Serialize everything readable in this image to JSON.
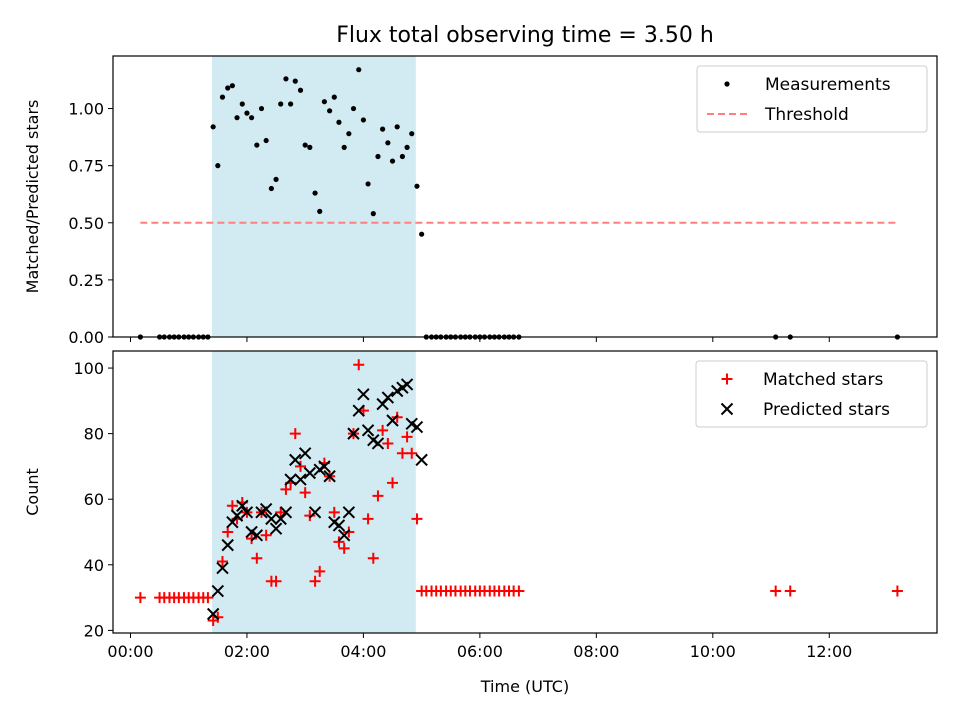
{
  "figure": {
    "title": "Flux total observing time = 3.50 h"
  },
  "chart_data": [
    {
      "type": "scatter",
      "ylabel": "Matched/Predicted stars",
      "xlabel": "",
      "xlim": [
        -0.3,
        13.85
      ],
      "ylim": [
        0,
        1.23
      ],
      "yticks": [
        0,
        0.25,
        0.5,
        0.75,
        1.0
      ],
      "ytick_labels": [
        "0.00",
        "0.25",
        "0.50",
        "0.75",
        "1.00"
      ],
      "x_unit": "hours UTC",
      "shaded_span": [
        1.4,
        4.9
      ],
      "shaded_color": "#add8e6",
      "legend": {
        "location": "upper right"
      },
      "series": [
        {
          "name": "Measurements",
          "marker": "dot",
          "color": "#000000",
          "points": [
            [
              0.17,
              0
            ],
            [
              0.5,
              0
            ],
            [
              0.58,
              0
            ],
            [
              0.67,
              0
            ],
            [
              0.75,
              0
            ],
            [
              0.83,
              0
            ],
            [
              0.92,
              0
            ],
            [
              1.0,
              0
            ],
            [
              1.08,
              0
            ],
            [
              1.17,
              0
            ],
            [
              1.25,
              0
            ],
            [
              1.33,
              0
            ],
            [
              1.42,
              0.92
            ],
            [
              1.5,
              0.75
            ],
            [
              1.58,
              1.05
            ],
            [
              1.67,
              1.09
            ],
            [
              1.75,
              1.1
            ],
            [
              1.83,
              0.96
            ],
            [
              1.92,
              1.02
            ],
            [
              2.0,
              0.98
            ],
            [
              2.08,
              0.96
            ],
            [
              2.17,
              0.84
            ],
            [
              2.25,
              1.0
            ],
            [
              2.33,
              0.86
            ],
            [
              2.42,
              0.65
            ],
            [
              2.5,
              0.69
            ],
            [
              2.58,
              1.02
            ],
            [
              2.67,
              1.13
            ],
            [
              2.75,
              1.02
            ],
            [
              2.83,
              1.12
            ],
            [
              2.92,
              1.08
            ],
            [
              3.0,
              0.84
            ],
            [
              3.08,
              0.83
            ],
            [
              3.17,
              0.63
            ],
            [
              3.25,
              0.55
            ],
            [
              3.33,
              1.03
            ],
            [
              3.42,
              0.99
            ],
            [
              3.5,
              1.05
            ],
            [
              3.58,
              0.94
            ],
            [
              3.67,
              0.83
            ],
            [
              3.75,
              0.89
            ],
            [
              3.83,
              1.0
            ],
            [
              3.92,
              1.17
            ],
            [
              4.0,
              0.95
            ],
            [
              4.08,
              0.67
            ],
            [
              4.17,
              0.54
            ],
            [
              4.25,
              0.79
            ],
            [
              4.33,
              0.91
            ],
            [
              4.42,
              0.85
            ],
            [
              4.5,
              0.77
            ],
            [
              4.58,
              0.92
            ],
            [
              4.67,
              0.79
            ],
            [
              4.75,
              0.83
            ],
            [
              4.83,
              0.89
            ],
            [
              4.92,
              0.66
            ],
            [
              5.0,
              0.45
            ],
            [
              5.08,
              0
            ],
            [
              5.17,
              0
            ],
            [
              5.25,
              0
            ],
            [
              5.33,
              0
            ],
            [
              5.42,
              0
            ],
            [
              5.5,
              0
            ],
            [
              5.58,
              0
            ],
            [
              5.67,
              0
            ],
            [
              5.75,
              0
            ],
            [
              5.83,
              0
            ],
            [
              5.92,
              0
            ],
            [
              6.0,
              0
            ],
            [
              6.08,
              0
            ],
            [
              6.17,
              0
            ],
            [
              6.25,
              0
            ],
            [
              6.33,
              0
            ],
            [
              6.42,
              0
            ],
            [
              6.5,
              0
            ],
            [
              6.58,
              0
            ],
            [
              6.67,
              0
            ],
            [
              11.08,
              0
            ],
            [
              11.33,
              0
            ],
            [
              13.17,
              0
            ]
          ]
        },
        {
          "name": "Threshold",
          "style": "dashed",
          "color": "#ff7f7f",
          "points": [
            [
              0.17,
              0.5
            ],
            [
              13.17,
              0.5
            ]
          ]
        }
      ]
    },
    {
      "type": "scatter",
      "ylabel": "Count",
      "xlabel": "Time (UTC)",
      "xlim": [
        -0.3,
        13.85
      ],
      "ylim": [
        19.2,
        105.2
      ],
      "yticks": [
        20,
        40,
        60,
        80,
        100
      ],
      "ytick_labels": [
        "20",
        "40",
        "60",
        "80",
        "100"
      ],
      "xticks": [
        0,
        2,
        4,
        6,
        8,
        10,
        12
      ],
      "xtick_labels": [
        "00:00",
        "02:00",
        "04:00",
        "06:00",
        "08:00",
        "10:00",
        "12:00"
      ],
      "shaded_span": [
        1.4,
        4.9
      ],
      "shaded_color": "#add8e6",
      "legend": {
        "location": "upper right"
      },
      "series": [
        {
          "name": "Matched stars",
          "marker": "plus",
          "color": "#ff0000",
          "points": [
            [
              0.17,
              30
            ],
            [
              0.5,
              30
            ],
            [
              0.58,
              30
            ],
            [
              0.67,
              30
            ],
            [
              0.75,
              30
            ],
            [
              0.83,
              30
            ],
            [
              0.92,
              30
            ],
            [
              1.0,
              30
            ],
            [
              1.08,
              30
            ],
            [
              1.17,
              30
            ],
            [
              1.25,
              30
            ],
            [
              1.33,
              30
            ],
            [
              1.42,
              23
            ],
            [
              1.5,
              24
            ],
            [
              1.58,
              41
            ],
            [
              1.67,
              50
            ],
            [
              1.75,
              58
            ],
            [
              1.83,
              54
            ],
            [
              1.92,
              59
            ],
            [
              2.0,
              56
            ],
            [
              2.08,
              48
            ],
            [
              2.17,
              42
            ],
            [
              2.25,
              56
            ],
            [
              2.33,
              49
            ],
            [
              2.42,
              35
            ],
            [
              2.5,
              35
            ],
            [
              2.58,
              56
            ],
            [
              2.67,
              63
            ],
            [
              2.75,
              65
            ],
            [
              2.83,
              80
            ],
            [
              2.92,
              70
            ],
            [
              3.0,
              62
            ],
            [
              3.08,
              55
            ],
            [
              3.17,
              35
            ],
            [
              3.25,
              38
            ],
            [
              3.33,
              71
            ],
            [
              3.42,
              67
            ],
            [
              3.5,
              56
            ],
            [
              3.58,
              47
            ],
            [
              3.67,
              45
            ],
            [
              3.75,
              50
            ],
            [
              3.83,
              80
            ],
            [
              3.92,
              101
            ],
            [
              4.0,
              87
            ],
            [
              4.08,
              54
            ],
            [
              4.17,
              42
            ],
            [
              4.25,
              61
            ],
            [
              4.33,
              81
            ],
            [
              4.42,
              77
            ],
            [
              4.5,
              65
            ],
            [
              4.58,
              85
            ],
            [
              4.67,
              74
            ],
            [
              4.75,
              79
            ],
            [
              4.83,
              74
            ],
            [
              4.92,
              54
            ],
            [
              5.0,
              32
            ],
            [
              5.08,
              32
            ],
            [
              5.17,
              32
            ],
            [
              5.25,
              32
            ],
            [
              5.33,
              32
            ],
            [
              5.42,
              32
            ],
            [
              5.5,
              32
            ],
            [
              5.58,
              32
            ],
            [
              5.67,
              32
            ],
            [
              5.75,
              32
            ],
            [
              5.83,
              32
            ],
            [
              5.92,
              32
            ],
            [
              6.0,
              32
            ],
            [
              6.08,
              32
            ],
            [
              6.17,
              32
            ],
            [
              6.25,
              32
            ],
            [
              6.33,
              32
            ],
            [
              6.42,
              32
            ],
            [
              6.5,
              32
            ],
            [
              6.58,
              32
            ],
            [
              6.67,
              32
            ],
            [
              11.08,
              32
            ],
            [
              11.33,
              32
            ],
            [
              13.17,
              32
            ]
          ]
        },
        {
          "name": "Predicted stars",
          "marker": "x",
          "color": "#000000",
          "points": [
            [
              1.42,
              25
            ],
            [
              1.5,
              32
            ],
            [
              1.58,
              39
            ],
            [
              1.67,
              46
            ],
            [
              1.75,
              53
            ],
            [
              1.83,
              55
            ],
            [
              1.92,
              58
            ],
            [
              2.0,
              56
            ],
            [
              2.08,
              50
            ],
            [
              2.17,
              49
            ],
            [
              2.25,
              56
            ],
            [
              2.33,
              57
            ],
            [
              2.42,
              54
            ],
            [
              2.5,
              51
            ],
            [
              2.58,
              54
            ],
            [
              2.67,
              56
            ],
            [
              2.75,
              66
            ],
            [
              2.83,
              72
            ],
            [
              2.92,
              66
            ],
            [
              3.0,
              74
            ],
            [
              3.08,
              68
            ],
            [
              3.17,
              56
            ],
            [
              3.25,
              69
            ],
            [
              3.33,
              70
            ],
            [
              3.42,
              67
            ],
            [
              3.5,
              53
            ],
            [
              3.58,
              52
            ],
            [
              3.67,
              49
            ],
            [
              3.75,
              56
            ],
            [
              3.83,
              80
            ],
            [
              3.92,
              87
            ],
            [
              4.0,
              92
            ],
            [
              4.08,
              81
            ],
            [
              4.17,
              78
            ],
            [
              4.25,
              77
            ],
            [
              4.33,
              89
            ],
            [
              4.42,
              91
            ],
            [
              4.5,
              84
            ],
            [
              4.58,
              93
            ],
            [
              4.67,
              94
            ],
            [
              4.75,
              95
            ],
            [
              4.83,
              83
            ],
            [
              4.92,
              82
            ],
            [
              5.0,
              72
            ]
          ]
        }
      ]
    }
  ]
}
